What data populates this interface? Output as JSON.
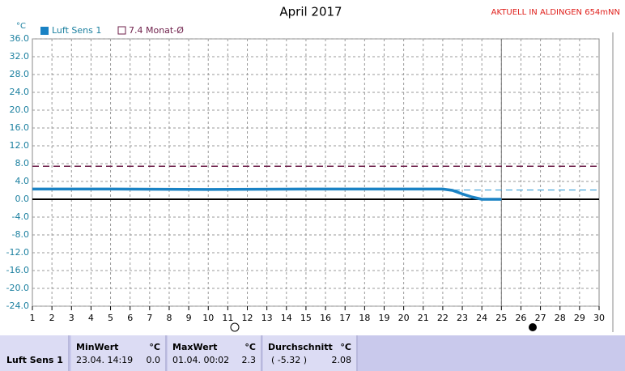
{
  "chart_data": {
    "type": "line",
    "title": "April 2017",
    "station_label": "AKTUELL IN ALDINGEN 654mNN",
    "y_unit": "°C",
    "x": [
      1,
      5,
      10,
      15,
      20,
      22,
      22.5,
      23,
      23.5,
      24,
      25
    ],
    "series": [
      {
        "name": "Luft Sens 1",
        "color": "#1a82c4",
        "values": [
          2.3,
          2.3,
          2.2,
          2.3,
          2.3,
          2.3,
          2.0,
          1.2,
          0.5,
          0.0,
          0.0
        ]
      }
    ],
    "reference_line": {
      "name": "7.4 Monat-Ø",
      "value": 7.4,
      "color": "#6e1f4a"
    },
    "average_line": {
      "x": [
        22,
        30
      ],
      "value": 2.08,
      "color": "#3aa0d8"
    },
    "current_day": 25,
    "xlim": [
      1,
      30
    ],
    "xticks": [
      1,
      2,
      3,
      4,
      5,
      6,
      7,
      8,
      9,
      10,
      11,
      12,
      13,
      14,
      15,
      16,
      17,
      18,
      19,
      20,
      21,
      22,
      23,
      24,
      25,
      26,
      27,
      28,
      29,
      30
    ],
    "ylim": [
      -24,
      36
    ],
    "yticks": [
      {
        "value": 36,
        "label": "36.0"
      },
      {
        "value": 32,
        "label": "32.0"
      },
      {
        "value": 28,
        "label": "28.0"
      },
      {
        "value": 24,
        "label": "24.0"
      },
      {
        "value": 20,
        "label": "20.0"
      },
      {
        "value": 16,
        "label": "16.0"
      },
      {
        "value": 12,
        "label": "12.0"
      },
      {
        "value": 8,
        "label": "8.0"
      },
      {
        "value": 4,
        "label": "4.0"
      },
      {
        "value": 0,
        "label": "0.0"
      },
      {
        "value": -4,
        "label": "-4.0"
      },
      {
        "value": -8,
        "label": "-8.0"
      },
      {
        "value": -12,
        "label": "-12.0"
      },
      {
        "value": -16,
        "label": "-16.0"
      },
      {
        "value": -20,
        "label": "-20.0"
      },
      {
        "value": -24,
        "label": "-24.0"
      }
    ],
    "grid": true
  },
  "stats_table": {
    "sensor": "Luft Sens 1",
    "min": {
      "header": "MinWert",
      "unit": "°C",
      "time": "23.04.  14:19",
      "value": "0.0"
    },
    "max": {
      "header": "MaxWert",
      "unit": "°C",
      "time": "01.04.  00:02",
      "value": "2.3"
    },
    "avg": {
      "header": "Durchschnitt",
      "unit": "°C",
      "note": "( -5.32 )",
      "value": "2.08"
    }
  }
}
